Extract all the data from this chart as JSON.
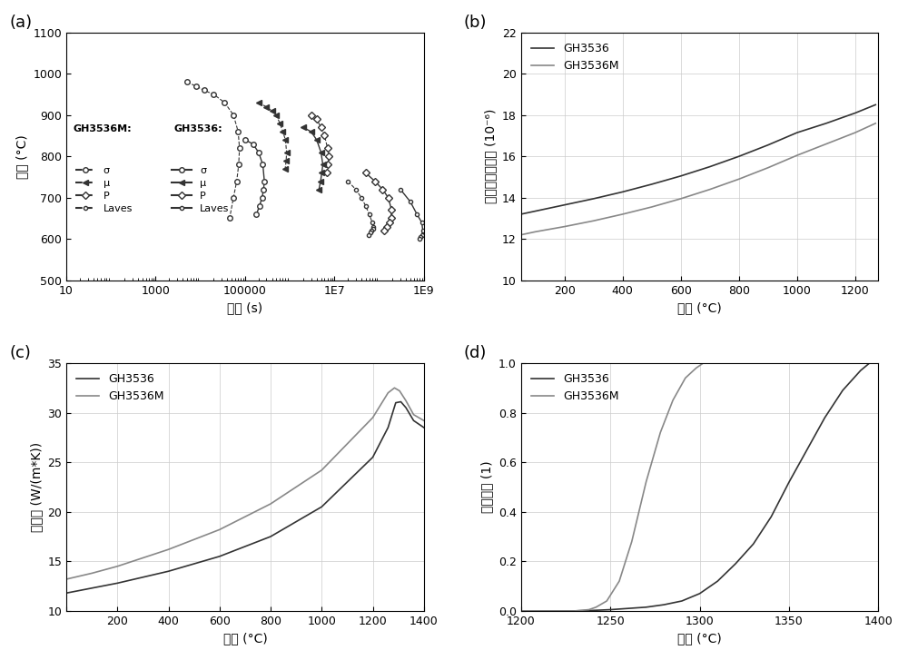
{
  "panel_a": {
    "xlabel": "时间 (s)",
    "ylabel": "温度 (°C)",
    "ylim": [
      500,
      1100
    ],
    "GH3536M_sigma_x": [
      5000,
      8000,
      12000,
      20000,
      35000,
      55000,
      70000,
      75000,
      72000,
      65000,
      55000,
      45000
    ],
    "GH3536M_sigma_y": [
      980,
      970,
      960,
      950,
      930,
      900,
      860,
      820,
      780,
      740,
      700,
      650
    ],
    "GH3536M_mu_x": [
      200000,
      300000,
      400000,
      500000,
      600000,
      700000,
      800000,
      850000,
      830000,
      790000
    ],
    "GH3536M_mu_y": [
      930,
      920,
      910,
      900,
      880,
      860,
      840,
      810,
      790,
      770
    ],
    "GH3536M_P_x": [
      3000000,
      4000000,
      5000000,
      6000000,
      7000000,
      7500000,
      7200000,
      6800000
    ],
    "GH3536M_P_y": [
      900,
      890,
      870,
      850,
      820,
      800,
      780,
      760
    ],
    "GH3536M_Laves_x": [
      20000000,
      30000000,
      40000000,
      50000000,
      60000000,
      70000000,
      75000000,
      72000000,
      68000000,
      64000000,
      58000000
    ],
    "GH3536M_Laves_y": [
      740,
      720,
      700,
      680,
      660,
      640,
      630,
      625,
      620,
      615,
      610
    ],
    "GH3536_sigma_x": [
      100000,
      150000,
      200000,
      250000,
      270000,
      260000,
      240000,
      210000,
      180000
    ],
    "GH3536_sigma_y": [
      840,
      830,
      810,
      780,
      740,
      720,
      700,
      680,
      660
    ],
    "GH3536_mu_x": [
      2000000,
      3000000,
      4000000,
      5000000,
      5500000,
      5200000,
      4900000,
      4500000
    ],
    "GH3536_mu_y": [
      870,
      860,
      840,
      810,
      780,
      760,
      740,
      720
    ],
    "GH3536_P_x": [
      50000000,
      80000000,
      120000000,
      160000000,
      190000000,
      185000000,
      170000000,
      150000000,
      130000000
    ],
    "GH3536_P_y": [
      760,
      740,
      720,
      700,
      670,
      650,
      640,
      630,
      620
    ],
    "GH3536_Laves_x": [
      300000000,
      500000000,
      700000000,
      900000000,
      950000000,
      900000000,
      850000000,
      800000000
    ],
    "GH3536_Laves_y": [
      720,
      690,
      660,
      640,
      620,
      610,
      605,
      600
    ]
  },
  "panel_b": {
    "xlabel": "温度 (°C)",
    "ylabel": "平均热膨胀系数 (10⁻⁶)",
    "ylim": [
      10,
      22
    ],
    "xlim": [
      50,
      1280
    ],
    "GH3536_x": [
      50,
      100,
      200,
      300,
      400,
      500,
      600,
      700,
      800,
      900,
      1000,
      1100,
      1200,
      1270
    ],
    "GH3536_y": [
      13.2,
      13.35,
      13.65,
      13.95,
      14.28,
      14.65,
      15.05,
      15.5,
      16.0,
      16.55,
      17.15,
      17.6,
      18.1,
      18.5
    ],
    "GH3536M_x": [
      50,
      100,
      200,
      300,
      400,
      500,
      600,
      700,
      800,
      900,
      1000,
      1100,
      1200,
      1270
    ],
    "GH3536M_y": [
      12.2,
      12.35,
      12.6,
      12.88,
      13.2,
      13.55,
      13.95,
      14.4,
      14.9,
      15.45,
      16.05,
      16.6,
      17.15,
      17.6
    ],
    "color_dark": "#333333",
    "color_light": "#888888"
  },
  "panel_c": {
    "xlabel": "温度 (°C)",
    "ylabel": "热导率 (W/(m*K))",
    "ylim": [
      10,
      35
    ],
    "xlim": [
      0,
      1400
    ],
    "GH3536_x": [
      0,
      100,
      200,
      400,
      600,
      800,
      1000,
      1200,
      1260,
      1290,
      1310,
      1330,
      1360,
      1400
    ],
    "GH3536_y": [
      11.8,
      12.3,
      12.8,
      14.0,
      15.5,
      17.5,
      20.5,
      25.5,
      28.5,
      31.0,
      31.1,
      30.5,
      29.2,
      28.5
    ],
    "GH3536M_x": [
      0,
      100,
      200,
      400,
      600,
      800,
      1000,
      1200,
      1260,
      1285,
      1305,
      1330,
      1360,
      1400
    ],
    "GH3536M_y": [
      13.2,
      13.8,
      14.5,
      16.2,
      18.2,
      20.8,
      24.2,
      29.5,
      32.0,
      32.5,
      32.2,
      31.2,
      29.8,
      29.2
    ],
    "color_dark": "#333333",
    "color_light": "#888888"
  },
  "panel_d": {
    "xlabel": "温度 (°C)",
    "ylabel": "质量分数 (1)",
    "ylim": [
      0.0,
      1.0
    ],
    "xlim": [
      1200,
      1400
    ],
    "GH3536_x": [
      1200,
      1230,
      1240,
      1250,
      1260,
      1270,
      1280,
      1290,
      1300,
      1310,
      1320,
      1330,
      1340,
      1350,
      1360,
      1370,
      1380,
      1390,
      1395
    ],
    "GH3536_y": [
      0.0,
      0.0,
      0.002,
      0.005,
      0.01,
      0.015,
      0.025,
      0.04,
      0.07,
      0.12,
      0.19,
      0.27,
      0.38,
      0.52,
      0.65,
      0.78,
      0.89,
      0.97,
      1.0
    ],
    "GH3536M_x": [
      1200,
      1230,
      1238,
      1242,
      1248,
      1255,
      1262,
      1270,
      1278,
      1285,
      1292,
      1298,
      1302
    ],
    "GH3536M_y": [
      0.0,
      0.0,
      0.005,
      0.015,
      0.04,
      0.12,
      0.28,
      0.52,
      0.72,
      0.85,
      0.94,
      0.98,
      1.0
    ],
    "color_dark": "#333333",
    "color_light": "#888888"
  }
}
